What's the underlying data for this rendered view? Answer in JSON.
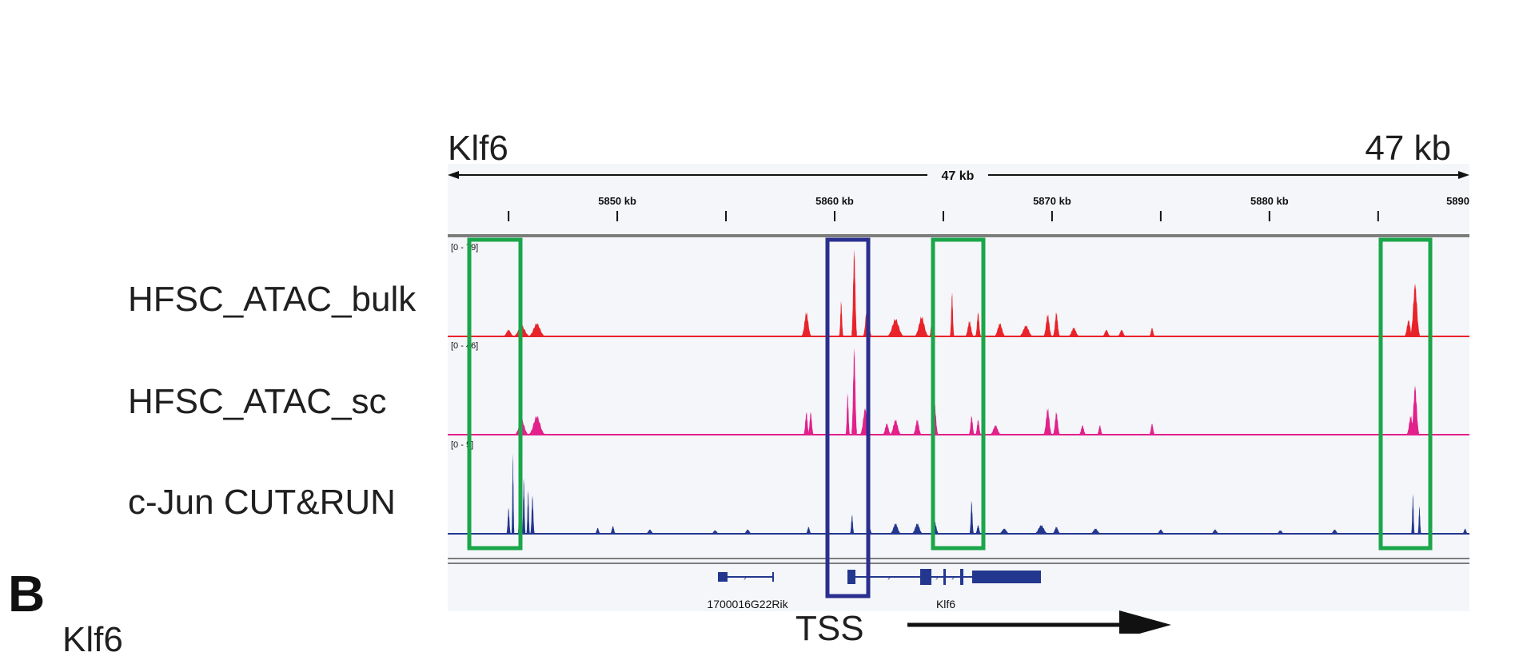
{
  "header": {
    "gene_label": "Klf6",
    "span_label": "47 kb",
    "ruler_label": "47 kb",
    "tick_labels": [
      "5850 kb",
      "5860 kb",
      "5870 kb",
      "5880 kb",
      "5890"
    ]
  },
  "tracks": [
    {
      "name": "HFSC_ATAC_bulk",
      "range_label": "[0 - 79]",
      "color": "#e8242a"
    },
    {
      "name": "HFSC_ATAC_sc",
      "range_label": "[0 - 46]",
      "color": "#e2218b"
    },
    {
      "name": "c-Jun CUT&RUN",
      "range_label": "[0 - 5]",
      "color": "#23378f"
    }
  ],
  "genes": [
    {
      "name": "1700016G22Rik"
    },
    {
      "name": "Klf6"
    }
  ],
  "annotations": {
    "tss_label": "TSS",
    "highlight_box_color": "#1aa64a",
    "tss_box_color": "#2a2f8f"
  },
  "panel_letter": "B",
  "cutoff_label": "Klf6",
  "chart_data": {
    "type": "area",
    "title": "",
    "x_unit": "kb",
    "x_ticks": [
      5850,
      5860,
      5870,
      5880,
      5890
    ],
    "span_kb": 47,
    "series": [
      {
        "name": "HFSC_ATAC_bulk",
        "ylim": [
          0,
          79
        ],
        "peaks": [
          [
            5845.6,
            0.6,
            10
          ],
          [
            5846.3,
            0.6,
            12
          ],
          [
            5845.0,
            0.4,
            6
          ],
          [
            5858.7,
            0.35,
            22
          ],
          [
            5860.3,
            0.15,
            32
          ],
          [
            5860.9,
            0.2,
            79
          ],
          [
            5861.5,
            0.3,
            30
          ],
          [
            5862.8,
            0.6,
            16
          ],
          [
            5864.0,
            0.5,
            18
          ],
          [
            5864.5,
            0.2,
            30
          ],
          [
            5865.4,
            0.15,
            40
          ],
          [
            5866.2,
            0.3,
            14
          ],
          [
            5866.6,
            0.2,
            22
          ],
          [
            5867.6,
            0.4,
            12
          ],
          [
            5868.8,
            0.5,
            10
          ],
          [
            5869.8,
            0.3,
            20
          ],
          [
            5870.2,
            0.25,
            22
          ],
          [
            5871.0,
            0.4,
            8
          ],
          [
            5872.5,
            0.3,
            6
          ],
          [
            5873.2,
            0.3,
            6
          ],
          [
            5874.6,
            0.2,
            8
          ],
          [
            5886.7,
            0.35,
            48
          ],
          [
            5886.4,
            0.3,
            15
          ]
        ]
      },
      {
        "name": "HFSC_ATAC_sc",
        "ylim": [
          0,
          46
        ],
        "peaks": [
          [
            5845.6,
            0.5,
            8
          ],
          [
            5846.3,
            0.6,
            10
          ],
          [
            5858.7,
            0.2,
            12
          ],
          [
            5858.9,
            0.2,
            12
          ],
          [
            5860.9,
            0.2,
            46
          ],
          [
            5860.6,
            0.15,
            22
          ],
          [
            5861.4,
            0.35,
            14
          ],
          [
            5862.4,
            0.3,
            6
          ],
          [
            5862.8,
            0.4,
            8
          ],
          [
            5863.8,
            0.3,
            8
          ],
          [
            5864.6,
            0.25,
            16
          ],
          [
            5866.3,
            0.2,
            10
          ],
          [
            5866.6,
            0.2,
            8
          ],
          [
            5867.4,
            0.4,
            5
          ],
          [
            5869.8,
            0.3,
            14
          ],
          [
            5870.2,
            0.25,
            12
          ],
          [
            5871.4,
            0.25,
            5
          ],
          [
            5872.2,
            0.2,
            5
          ],
          [
            5874.6,
            0.2,
            6
          ],
          [
            5886.7,
            0.3,
            26
          ],
          [
            5886.5,
            0.3,
            10
          ]
        ]
      },
      {
        "name": "c-Jun CUT&RUN",
        "ylim": [
          0,
          5
        ],
        "peaks": [
          [
            5845.2,
            0.1,
            4.6
          ],
          [
            5845.5,
            0.1,
            3.6
          ],
          [
            5845.7,
            0.12,
            3.2
          ],
          [
            5845.9,
            0.12,
            2.5
          ],
          [
            5846.1,
            0.15,
            2.2
          ],
          [
            5845.0,
            0.15,
            1.5
          ],
          [
            5849.1,
            0.2,
            0.35
          ],
          [
            5849.8,
            0.2,
            0.45
          ],
          [
            5851.5,
            0.3,
            0.25
          ],
          [
            5854.5,
            0.3,
            0.2
          ],
          [
            5856.0,
            0.3,
            0.25
          ],
          [
            5858.8,
            0.2,
            0.4
          ],
          [
            5860.8,
            0.15,
            1.1
          ],
          [
            5861.6,
            0.2,
            0.4
          ],
          [
            5862.8,
            0.4,
            0.6
          ],
          [
            5863.8,
            0.4,
            0.6
          ],
          [
            5864.6,
            0.3,
            0.7
          ],
          [
            5866.3,
            0.15,
            1.9
          ],
          [
            5866.6,
            0.2,
            0.5
          ],
          [
            5867.8,
            0.4,
            0.3
          ],
          [
            5869.5,
            0.5,
            0.5
          ],
          [
            5870.2,
            0.3,
            0.4
          ],
          [
            5872.0,
            0.4,
            0.3
          ],
          [
            5875.0,
            0.3,
            0.25
          ],
          [
            5877.5,
            0.3,
            0.25
          ],
          [
            5880.5,
            0.3,
            0.2
          ],
          [
            5883.0,
            0.3,
            0.25
          ],
          [
            5886.6,
            0.12,
            2.3
          ],
          [
            5886.9,
            0.12,
            1.6
          ],
          [
            5889.0,
            0.2,
            0.3
          ]
        ]
      }
    ]
  }
}
